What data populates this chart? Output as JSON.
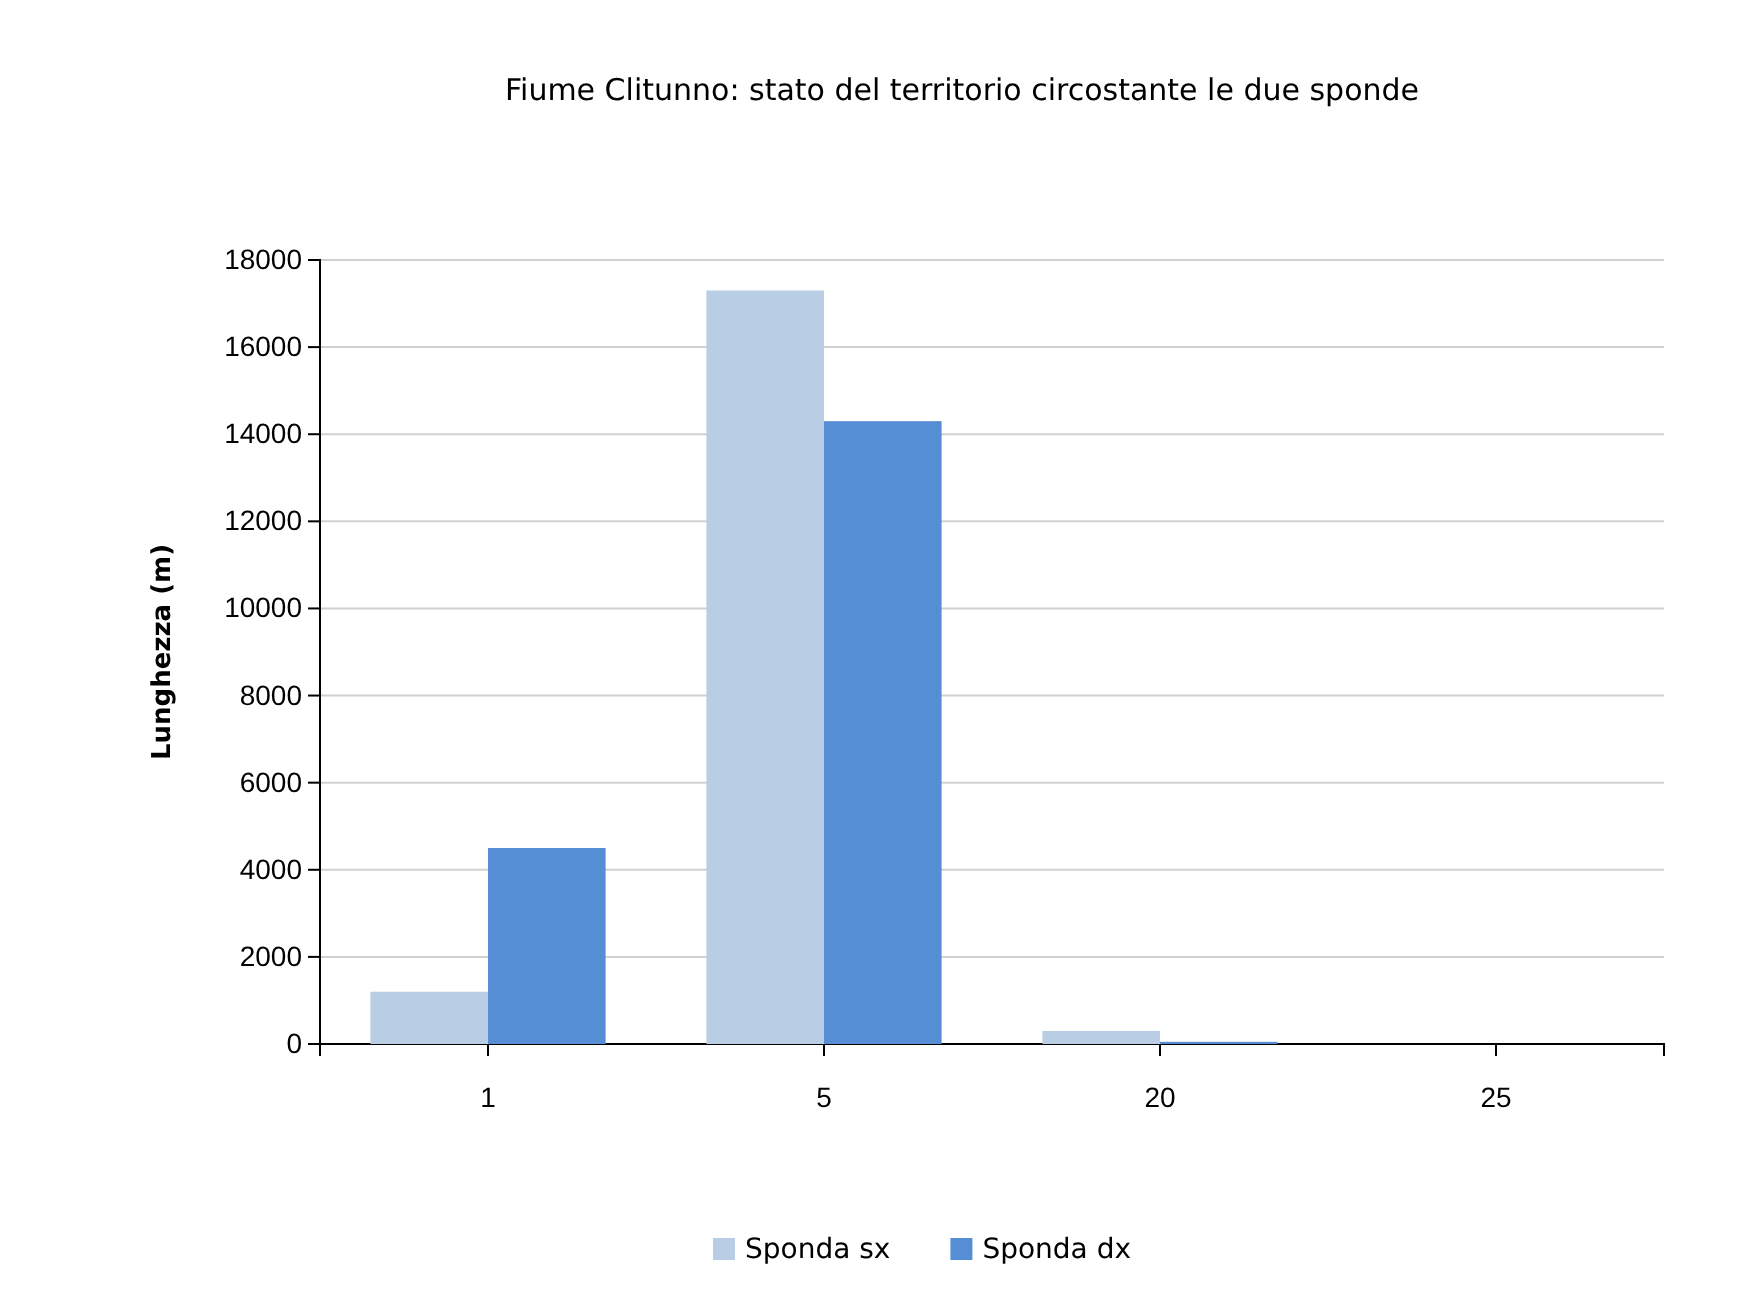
{
  "chart_data": {
    "type": "bar",
    "title": "Fiume Clitunno: stato del territorio circostante le due sponde",
    "ylabel": "Lunghezza (m)",
    "categories": [
      "1",
      "5",
      "20",
      "25"
    ],
    "series": [
      {
        "name": "Sponda sx",
        "color": "#b9cde5",
        "values": [
          1200,
          17300,
          300,
          0
        ]
      },
      {
        "name": "Sponda dx",
        "color": "#558ed5",
        "values": [
          4500,
          14300,
          50,
          0
        ]
      }
    ],
    "ylim": [
      0,
      18000
    ],
    "yticks": [
      0,
      2000,
      4000,
      6000,
      8000,
      10000,
      12000,
      14000,
      16000,
      18000
    ],
    "grid": "y",
    "legend": "bottom"
  }
}
